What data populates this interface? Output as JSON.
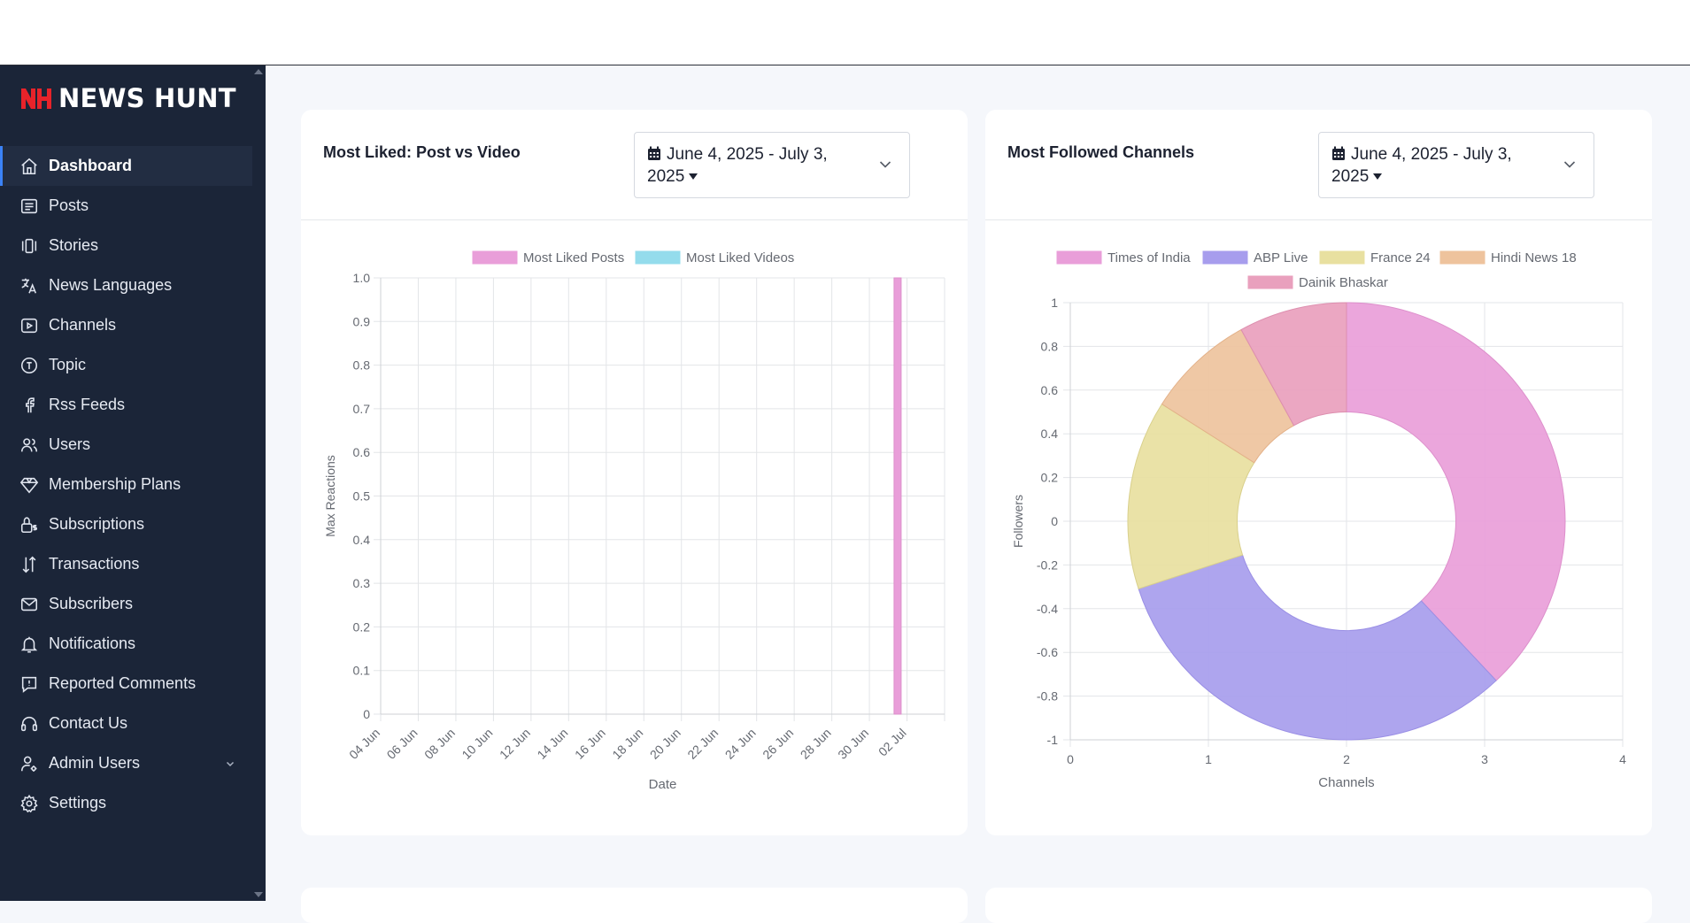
{
  "brand": {
    "name": "NEWS HUNT"
  },
  "sidebar": {
    "items": [
      {
        "label": "Dashboard",
        "icon": "home-icon",
        "active": true
      },
      {
        "label": "Posts",
        "icon": "list-icon"
      },
      {
        "label": "Stories",
        "icon": "stories-icon"
      },
      {
        "label": "News Languages",
        "icon": "translate-icon"
      },
      {
        "label": "Channels",
        "icon": "play-icon"
      },
      {
        "label": "Topic",
        "icon": "topic-icon"
      },
      {
        "label": "Rss Feeds",
        "icon": "facebook-icon"
      },
      {
        "label": "Users",
        "icon": "users-icon"
      },
      {
        "label": "Membership Plans",
        "icon": "diamond-icon"
      },
      {
        "label": "Subscriptions",
        "icon": "lock-dollar-icon"
      },
      {
        "label": "Transactions",
        "icon": "transfer-icon"
      },
      {
        "label": "Subscribers",
        "icon": "mail-icon"
      },
      {
        "label": "Notifications",
        "icon": "bell-icon"
      },
      {
        "label": "Reported Comments",
        "icon": "comment-alert-icon"
      },
      {
        "label": "Contact Us",
        "icon": "headset-icon"
      },
      {
        "label": "Admin Users",
        "icon": "user-gear-icon",
        "expandable": true
      },
      {
        "label": "Settings",
        "icon": "gear-icon"
      }
    ]
  },
  "cards": {
    "liked": {
      "title": "Most Liked: Post vs Video",
      "date_line1": "June 4, 2025 - July 3,",
      "date_line2": "2025"
    },
    "followed": {
      "title": "Most Followed Channels",
      "date_line1": "June 4, 2025 - July 3,",
      "date_line2": "2025"
    }
  },
  "chart_data": [
    {
      "type": "bar",
      "xlabel": "Date",
      "ylabel": "Max Reactions",
      "ylim": [
        0,
        1
      ],
      "yticks": [
        "0",
        "0.1",
        "0.2",
        "0.3",
        "0.4",
        "0.5",
        "0.6",
        "0.7",
        "0.8",
        "0.9",
        "1.0"
      ],
      "xticks": [
        "04 Jun",
        "06 Jun",
        "08 Jun",
        "10 Jun",
        "12 Jun",
        "14 Jun",
        "16 Jun",
        "18 Jun",
        "20 Jun",
        "22 Jun",
        "24 Jun",
        "26 Jun",
        "28 Jun",
        "30 Jun",
        "02 Jul"
      ],
      "legend_position": "top",
      "grid": true,
      "series": [
        {
          "name": "Most Liked Posts",
          "color": "#e99ed9",
          "points": [
            {
              "x": "01 Jul",
              "y": 1.0
            }
          ]
        },
        {
          "name": "Most Liked Videos",
          "color": "#94dcec",
          "points": []
        }
      ]
    },
    {
      "type": "pie",
      "subtype": "doughnut",
      "xlabel": "Channels",
      "ylabel": "Followers",
      "xticks": [
        "0",
        "1",
        "2",
        "3",
        "4"
      ],
      "yticks": [
        "-1",
        "-0.8",
        "-0.6",
        "-0.4",
        "-0.2",
        "0",
        "0.2",
        "0.4",
        "0.6",
        "0.8",
        "1"
      ],
      "legend_position": "top",
      "grid": true,
      "slices": [
        {
          "label": "Times of India",
          "value": 38,
          "color": "#e99ed9"
        },
        {
          "label": "ABP Live",
          "value": 32,
          "color": "#a79ded"
        },
        {
          "label": "France 24",
          "value": 14,
          "color": "#e8e0a0"
        },
        {
          "label": "Hindi News 18",
          "value": 8,
          "color": "#eec39d"
        },
        {
          "label": "Dainik Bhaskar",
          "value": 8,
          "color": "#e9a0bd"
        }
      ]
    }
  ]
}
